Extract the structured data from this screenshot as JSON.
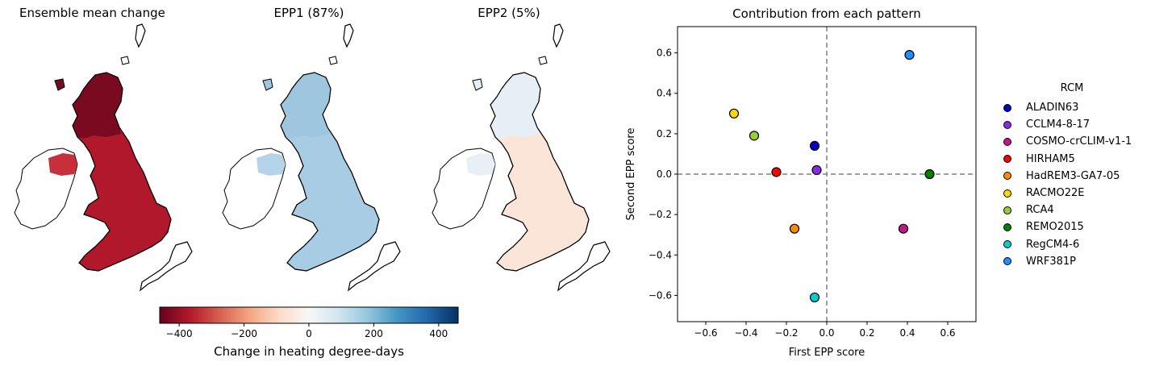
{
  "maps": [
    {
      "title": "Ensemble mean change",
      "fill": "#b1182b",
      "north_fill": "#7a0a1f",
      "ireland_fill": "#ffffff",
      "ni_fill": "#c7303a"
    },
    {
      "title": "EPP1 (87%)",
      "fill": "#a8cce3",
      "north_fill": "#9ec6df",
      "ireland_fill": "#ffffff",
      "ni_fill": "#b3d4e8"
    },
    {
      "title": "EPP2 (5%)",
      "fill": "#fbe4d8",
      "north_fill": "#e6eff6",
      "ireland_fill": "#ffffff",
      "ni_fill": "#e8f0f6"
    }
  ],
  "colorbar": {
    "label": "Change in heating degree-days",
    "ticks": [
      "−400",
      "−200",
      "0",
      "200",
      "400"
    ],
    "tick_values": [
      -400,
      -200,
      0,
      200,
      400
    ],
    "vmin": -460,
    "vmax": 460,
    "colormap": [
      "#67001f",
      "#b2182b",
      "#d6604d",
      "#f4a582",
      "#fddbc7",
      "#f7f7f7",
      "#d1e5f0",
      "#92c5de",
      "#4393c3",
      "#2166ac",
      "#053061"
    ]
  },
  "chart_data": {
    "type": "scatter",
    "title": "Contribution from each pattern",
    "xlabel": "First EPP score",
    "ylabel": "Second EPP score",
    "xlim": [
      -0.74,
      0.74
    ],
    "ylim": [
      -0.73,
      0.73
    ],
    "xticks": [
      -0.6,
      -0.4,
      -0.2,
      0.0,
      0.2,
      0.4,
      0.6
    ],
    "yticks": [
      -0.6,
      -0.4,
      -0.2,
      0.0,
      0.2,
      0.4,
      0.6
    ],
    "xtick_labels": [
      "−0.6",
      "−0.4",
      "−0.2",
      "0.0",
      "0.2",
      "0.4",
      "0.6"
    ],
    "ytick_labels": [
      "−0.6",
      "−0.4",
      "−0.2",
      "0.0",
      "0.2",
      "0.4",
      "0.6"
    ],
    "grid": false,
    "reference_lines": {
      "x": 0,
      "y": 0,
      "style": "dashed",
      "color": "#808080"
    },
    "legend_title": "RCM",
    "legend_position": "outside-right",
    "points": [
      {
        "name": "ALADIN63",
        "x": -0.06,
        "y": 0.14,
        "color": "#0000cd"
      },
      {
        "name": "CCLM4-8-17",
        "x": -0.05,
        "y": 0.02,
        "color": "#8a2be2"
      },
      {
        "name": "COSMO-crCLIM-v1-1",
        "x": 0.38,
        "y": -0.27,
        "color": "#c71585"
      },
      {
        "name": "HIRHAM5",
        "x": -0.25,
        "y": 0.01,
        "color": "#ff0000"
      },
      {
        "name": "HadREM3-GA7-05",
        "x": -0.16,
        "y": -0.27,
        "color": "#ff8c00"
      },
      {
        "name": "RACMO22E",
        "x": -0.46,
        "y": 0.3,
        "color": "#ffd700"
      },
      {
        "name": "RCA4",
        "x": -0.36,
        "y": 0.19,
        "color": "#9acd32"
      },
      {
        "name": "REMO2015",
        "x": 0.51,
        "y": 0.0,
        "color": "#008000"
      },
      {
        "name": "RegCM4-6",
        "x": -0.06,
        "y": -0.61,
        "color": "#00ced1"
      },
      {
        "name": "WRF381P",
        "x": 0.41,
        "y": 0.59,
        "color": "#1e90ff"
      }
    ]
  }
}
